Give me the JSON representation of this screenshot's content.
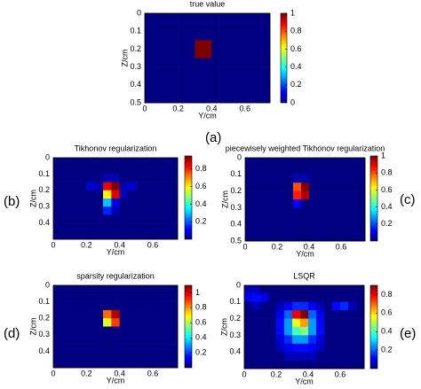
{
  "chart_data": [
    {
      "type": "heatmap",
      "title": "true value",
      "label": "(a)",
      "xlabel": "Y/cm",
      "ylabel": "Z/cm",
      "xlim": [
        0,
        0.75
      ],
      "ylim": [
        0,
        0.5
      ],
      "xticks": [
        0,
        0.2,
        0.4,
        0.6
      ],
      "yticks": [
        0,
        0.1,
        0.2,
        0.3,
        0.4,
        0.5
      ],
      "clim": [
        0,
        1
      ],
      "cticks": [
        0,
        0.2,
        0.4,
        0.6,
        0.8,
        1
      ],
      "values": [
        [
          0,
          0,
          0,
          0,
          0,
          0,
          0,
          0,
          0,
          0,
          0,
          0,
          0,
          0,
          0
        ],
        [
          0,
          0,
          0,
          0,
          0,
          0,
          0,
          0,
          0,
          0,
          0,
          0,
          0,
          0,
          0
        ],
        [
          0,
          0,
          0,
          0,
          0,
          0,
          0,
          0,
          0,
          0,
          0,
          0,
          0,
          0,
          0
        ],
        [
          0,
          0,
          0,
          0,
          0,
          0,
          1,
          1,
          0,
          0,
          0,
          0,
          0,
          0,
          0
        ],
        [
          0,
          0,
          0,
          0,
          0,
          0,
          1,
          1,
          0,
          0,
          0,
          0,
          0,
          0,
          0
        ],
        [
          0,
          0,
          0,
          0,
          0,
          0,
          0,
          0,
          0,
          0,
          0,
          0,
          0,
          0,
          0
        ],
        [
          0,
          0,
          0,
          0,
          0,
          0,
          0,
          0,
          0,
          0,
          0,
          0,
          0,
          0,
          0
        ],
        [
          0,
          0,
          0,
          0,
          0,
          0,
          0,
          0,
          0,
          0,
          0,
          0,
          0,
          0,
          0
        ],
        [
          0,
          0,
          0,
          0,
          0,
          0,
          0,
          0,
          0,
          0,
          0,
          0,
          0,
          0,
          0
        ],
        [
          0,
          0,
          0,
          0,
          0,
          0,
          0,
          0,
          0,
          0,
          0,
          0,
          0,
          0,
          0
        ]
      ]
    },
    {
      "type": "heatmap",
      "title": "Tikhonov regularization",
      "label": "(b)",
      "xlabel": "Y/cm",
      "ylabel": "Z/cm",
      "xlim": [
        0,
        0.75
      ],
      "ylim": [
        0,
        0.5
      ],
      "xticks": [
        0,
        0.2,
        0.4,
        0.6
      ],
      "yticks": [
        0,
        0.1,
        0.2,
        0.3,
        0.4
      ],
      "clim": [
        0,
        0.95
      ],
      "cticks": [
        0.2,
        0.4,
        0.6,
        0.8
      ],
      "values": [
        [
          0,
          0,
          0,
          0,
          0,
          0,
          0,
          0,
          0,
          0,
          0,
          0,
          0,
          0,
          0
        ],
        [
          0,
          0,
          0,
          0,
          0,
          0,
          0,
          0,
          0,
          0,
          0,
          0,
          0,
          0,
          0
        ],
        [
          0,
          0,
          0,
          0,
          0,
          0,
          0.05,
          0.05,
          0,
          0,
          0,
          0,
          0,
          0,
          0
        ],
        [
          0,
          0,
          0,
          0,
          0.08,
          0.05,
          0.85,
          0.95,
          0.05,
          0.08,
          0,
          0,
          0,
          0,
          0
        ],
        [
          0,
          0,
          0,
          0,
          0,
          0,
          0.6,
          0.85,
          0.05,
          0,
          0,
          0,
          0,
          0,
          0
        ],
        [
          0,
          0,
          0,
          0,
          0,
          0,
          0.3,
          0.1,
          0,
          0,
          0,
          0,
          0,
          0,
          0
        ],
        [
          0,
          0,
          0,
          0,
          0,
          0,
          0.15,
          0.05,
          0,
          0,
          0,
          0,
          0,
          0,
          0
        ],
        [
          0,
          0,
          0,
          0,
          0,
          0,
          0,
          0,
          0,
          0,
          0,
          0,
          0,
          0,
          0
        ],
        [
          0,
          0,
          0,
          0,
          0,
          0,
          0,
          0,
          0,
          0,
          0,
          0,
          0,
          0,
          0
        ],
        [
          0,
          0,
          0,
          0,
          0,
          0,
          0,
          0,
          0,
          0,
          0,
          0,
          0,
          0,
          0
        ]
      ]
    },
    {
      "type": "heatmap",
      "title": "piecewisely weighted Tikhonov regularization",
      "label": "(c)",
      "xlabel": "Y/cm",
      "ylabel": "Z/cm",
      "xlim": [
        0,
        0.75
      ],
      "ylim": [
        0,
        0.5
      ],
      "xticks": [
        0,
        0.2,
        0.4,
        0.6
      ],
      "yticks": [
        0,
        0.1,
        0.2,
        0.3,
        0.4,
        0.5
      ],
      "clim": [
        0,
        1
      ],
      "cticks": [
        0.2,
        0.4,
        0.6,
        0.8,
        1
      ],
      "values": [
        [
          0,
          0,
          0,
          0,
          0,
          0,
          0,
          0,
          0,
          0,
          0,
          0,
          0,
          0,
          0
        ],
        [
          0,
          0,
          0,
          0,
          0,
          0,
          0,
          0,
          0,
          0,
          0,
          0,
          0,
          0,
          0
        ],
        [
          0,
          0,
          0,
          0,
          0,
          0,
          0.05,
          0.05,
          0,
          0,
          0,
          0,
          0,
          0,
          0
        ],
        [
          0,
          0,
          0,
          0,
          0,
          0,
          0.8,
          1,
          0,
          0,
          0,
          0,
          0,
          0,
          0
        ],
        [
          0,
          0,
          0,
          0,
          0,
          0,
          0.85,
          0.95,
          0,
          0,
          0,
          0,
          0,
          0,
          0
        ],
        [
          0,
          0,
          0,
          0,
          0,
          0,
          0.12,
          0,
          0,
          0,
          0,
          0,
          0,
          0,
          0
        ],
        [
          0,
          0,
          0,
          0,
          0,
          0,
          0,
          0,
          0,
          0,
          0,
          0,
          0,
          0,
          0
        ],
        [
          0,
          0,
          0,
          0,
          0,
          0,
          0,
          0,
          0,
          0,
          0,
          0,
          0,
          0,
          0
        ],
        [
          0,
          0,
          0,
          0,
          0,
          0,
          0,
          0,
          0,
          0,
          0,
          0,
          0,
          0,
          0
        ],
        [
          0,
          0,
          0,
          0,
          0,
          0,
          0,
          0,
          0,
          0,
          0,
          0,
          0,
          0,
          0
        ]
      ]
    },
    {
      "type": "heatmap",
      "title": "sparsity regularization",
      "label": "(d)",
      "xlabel": "Y/cm",
      "ylabel": "Z/cm",
      "xlim": [
        0,
        0.75
      ],
      "ylim": [
        0,
        0.5
      ],
      "xticks": [
        0,
        0.2,
        0.4,
        0.6
      ],
      "yticks": [
        0,
        0.1,
        0.2,
        0.3,
        0.4
      ],
      "clim": [
        0,
        1.1
      ],
      "cticks": [
        0.2,
        0.4,
        0.6,
        0.8,
        1
      ],
      "values": [
        [
          0,
          0,
          0,
          0,
          0,
          0,
          0,
          0,
          0,
          0,
          0,
          0,
          0,
          0,
          0
        ],
        [
          0,
          0,
          0,
          0,
          0,
          0,
          0,
          0,
          0,
          0,
          0,
          0,
          0,
          0,
          0
        ],
        [
          0,
          0,
          0,
          0,
          0,
          0,
          0,
          0,
          0,
          0,
          0,
          0,
          0,
          0,
          0
        ],
        [
          0,
          0,
          0,
          0,
          0,
          0,
          0.85,
          1.05,
          0,
          0,
          0,
          0,
          0,
          0,
          0
        ],
        [
          0,
          0,
          0,
          0,
          0,
          0,
          0.65,
          0.9,
          0,
          0,
          0,
          0,
          0,
          0,
          0
        ],
        [
          0,
          0,
          0,
          0,
          0,
          0,
          0,
          0,
          0,
          0,
          0,
          0,
          0,
          0,
          0
        ],
        [
          0,
          0,
          0,
          0,
          0,
          0,
          0,
          0,
          0,
          0,
          0,
          0,
          0,
          0,
          0
        ],
        [
          0,
          0,
          0,
          0,
          0,
          0,
          0,
          0,
          0,
          0,
          0,
          0,
          0,
          0,
          0
        ],
        [
          0,
          0,
          0,
          0,
          0,
          0,
          0,
          0,
          0,
          0,
          0,
          0,
          0,
          0,
          0
        ],
        [
          0,
          0,
          0,
          0,
          0,
          0,
          0,
          0,
          0,
          0,
          0,
          0,
          0,
          0,
          0
        ]
      ]
    },
    {
      "type": "heatmap",
      "title": "LSQR",
      "label": "(e)",
      "xlabel": "Y/cm",
      "ylabel": "Z/cm",
      "xlim": [
        0,
        0.75
      ],
      "ylim": [
        0,
        0.5
      ],
      "xticks": [
        0,
        0.2,
        0.4,
        0.6
      ],
      "yticks": [
        0,
        0.1,
        0.2,
        0.3,
        0.4
      ],
      "clim": [
        0,
        0.9
      ],
      "cticks": [
        0.2,
        0.4,
        0.6,
        0.8
      ],
      "values": [
        [
          0.05,
          0.05,
          0,
          0,
          0,
          0,
          0,
          0,
          0,
          0,
          0,
          0,
          0,
          0,
          0
        ],
        [
          0.1,
          0.12,
          0.1,
          0,
          0,
          0,
          0,
          0,
          0,
          0,
          0,
          0,
          0,
          0,
          0
        ],
        [
          0,
          0.05,
          0,
          0,
          0.05,
          0.1,
          0.15,
          0.15,
          0.1,
          0.05,
          0,
          0.12,
          0.15,
          0.05,
          0
        ],
        [
          0,
          0,
          0,
          0,
          0.1,
          0.2,
          0.8,
          0.9,
          0.2,
          0.1,
          0,
          0,
          0,
          0,
          0
        ],
        [
          0,
          0,
          0,
          0,
          0.12,
          0.25,
          0.55,
          0.65,
          0.25,
          0.12,
          0,
          0,
          0,
          0,
          0
        ],
        [
          0,
          0,
          0,
          0,
          0.12,
          0.25,
          0.4,
          0.45,
          0.25,
          0.12,
          0,
          0,
          0,
          0,
          0
        ],
        [
          0,
          0,
          0,
          0,
          0.08,
          0.15,
          0.25,
          0.25,
          0.15,
          0.08,
          0,
          0,
          0,
          0,
          0
        ],
        [
          0,
          0,
          0,
          0,
          0.05,
          0.1,
          0.12,
          0.12,
          0.1,
          0.05,
          0,
          0,
          0,
          0,
          0
        ],
        [
          0,
          0,
          0,
          0,
          0,
          0.05,
          0.05,
          0.05,
          0.05,
          0,
          0,
          0,
          0,
          0,
          0
        ],
        [
          0,
          0,
          0,
          0,
          0,
          0,
          0,
          0,
          0,
          0,
          0,
          0,
          0,
          0,
          0
        ]
      ]
    }
  ]
}
